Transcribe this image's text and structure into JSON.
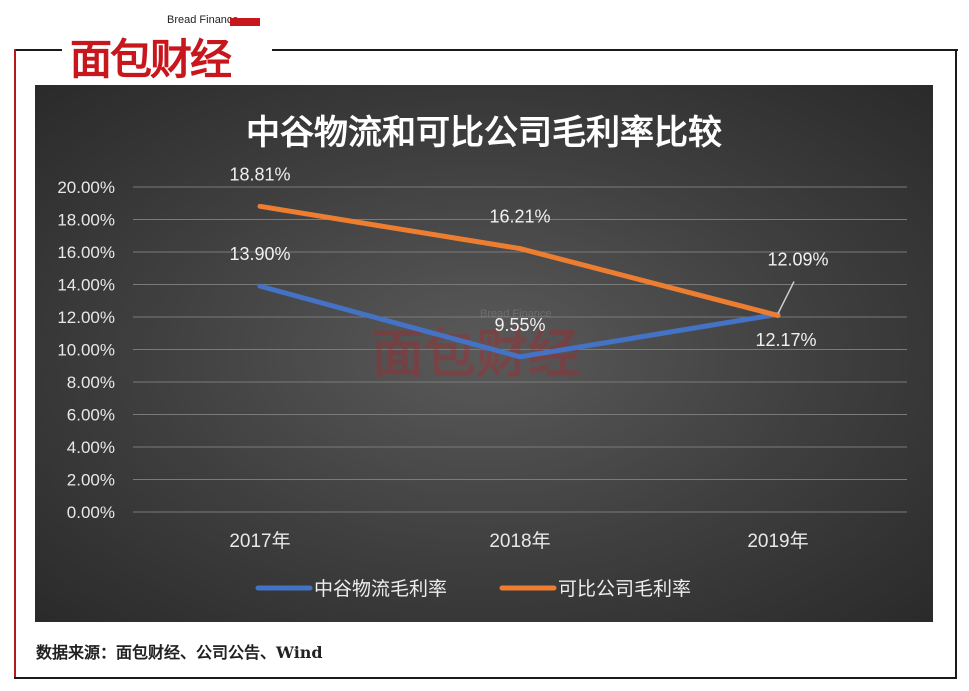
{
  "logo": {
    "en": "Bread Finance",
    "cn": "面包财经"
  },
  "watermark": {
    "en": "Bread Finance",
    "cn": "面包财经"
  },
  "source_text": "数据来源：面包财经、公司公告、Wind",
  "colors": {
    "series1": "#4472c4",
    "series2": "#ed7d31",
    "brand": "#c8161d"
  },
  "chart_data": {
    "type": "line",
    "title": "中谷物流和可比公司毛利率比较",
    "categories": [
      "2017年",
      "2018年",
      "2019年"
    ],
    "y_ticks": [
      "0.00%",
      "2.00%",
      "4.00%",
      "6.00%",
      "8.00%",
      "10.00%",
      "12.00%",
      "14.00%",
      "16.00%",
      "18.00%",
      "20.00%"
    ],
    "ylim": [
      0,
      20
    ],
    "grid": true,
    "legend_position": "bottom",
    "series": [
      {
        "name": "中谷物流毛利率",
        "values": [
          13.9,
          9.55,
          12.17
        ],
        "labels": [
          "13.90%",
          "9.55%",
          "12.17%"
        ]
      },
      {
        "name": "可比公司毛利率",
        "values": [
          18.81,
          16.21,
          12.09
        ],
        "labels": [
          "18.81%",
          "16.21%",
          "12.09%"
        ]
      }
    ]
  }
}
